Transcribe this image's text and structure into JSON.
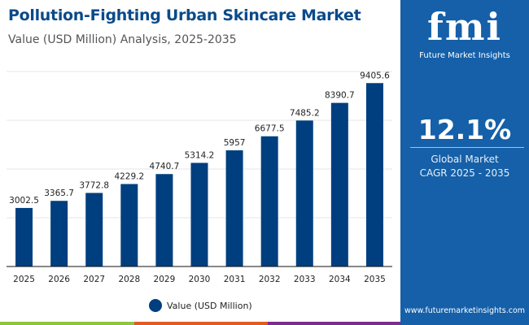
{
  "title": "Pollution-Fighting Urban Skincare Market",
  "subtitle": "Value (USD Million) Analysis, 2025-2035",
  "panel": {
    "logo": "fmi",
    "logo_sub": "Future Market Insights",
    "cagr": "12.1%",
    "cagr_label_1": "Global Market",
    "cagr_label_2": "CAGR 2025 - 2035",
    "url": "www.futuremarketinsights.com",
    "color": "#1560a8"
  },
  "colors": {
    "bar": "#003f7f",
    "strip": [
      "#8cc63f",
      "#e35a24",
      "#7b2d8b"
    ]
  },
  "chart_data": {
    "type": "bar",
    "categories": [
      "2025",
      "2026",
      "2027",
      "2028",
      "2029",
      "2030",
      "2031",
      "2032",
      "2033",
      "2034",
      "2035"
    ],
    "series": [
      {
        "name": "Value (USD Million)",
        "values": [
          3002.5,
          3365.7,
          3772.8,
          4229.2,
          4740.7,
          5314.2,
          5957,
          6677.5,
          7485.2,
          8390.7,
          9405.6
        ]
      }
    ],
    "labels": [
      "3002.5",
      "3365.7",
      "3772.8",
      "4229.2",
      "4740.7",
      "5314.2",
      "5957",
      "6677.5",
      "7485.2",
      "8390.7",
      "9405.6"
    ],
    "ylim": [
      0,
      10000
    ],
    "grid": true,
    "legend": "bottom-center"
  }
}
